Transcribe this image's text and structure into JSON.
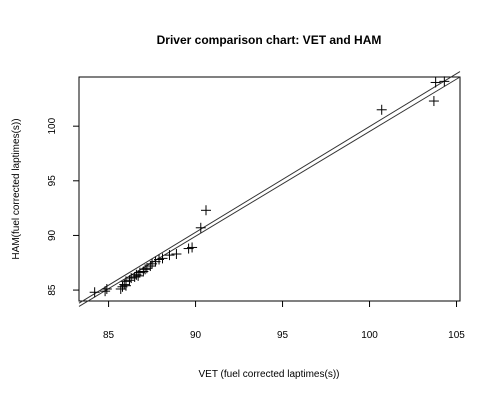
{
  "chart_data": {
    "type": "scatter",
    "title": "Driver comparison chart: VET and HAM",
    "xlabel": "VET (fuel corrected laptimes(s))",
    "ylabel": "HAM(fuel corrected laptimes(s))",
    "xlim": [
      83.3,
      105.2
    ],
    "ylim": [
      84.0,
      104.5
    ],
    "x_ticks": [
      85,
      90,
      95,
      100,
      105
    ],
    "y_ticks": [
      85,
      90,
      95,
      100
    ],
    "grid": false,
    "marker": "plus",
    "points": [
      {
        "x": 84.2,
        "y": 84.8
      },
      {
        "x": 84.8,
        "y": 84.9
      },
      {
        "x": 84.9,
        "y": 85.1
      },
      {
        "x": 85.7,
        "y": 85.1
      },
      {
        "x": 85.8,
        "y": 85.3
      },
      {
        "x": 85.9,
        "y": 85.5
      },
      {
        "x": 86.0,
        "y": 85.4
      },
      {
        "x": 86.0,
        "y": 85.8
      },
      {
        "x": 86.2,
        "y": 85.9
      },
      {
        "x": 86.3,
        "y": 86.1
      },
      {
        "x": 86.5,
        "y": 86.2
      },
      {
        "x": 86.6,
        "y": 86.4
      },
      {
        "x": 86.7,
        "y": 86.3
      },
      {
        "x": 86.8,
        "y": 86.6
      },
      {
        "x": 87.0,
        "y": 86.7
      },
      {
        "x": 87.1,
        "y": 86.9
      },
      {
        "x": 87.2,
        "y": 87.0
      },
      {
        "x": 87.4,
        "y": 87.2
      },
      {
        "x": 87.5,
        "y": 87.4
      },
      {
        "x": 87.7,
        "y": 87.6
      },
      {
        "x": 87.9,
        "y": 87.8
      },
      {
        "x": 88.1,
        "y": 87.9
      },
      {
        "x": 88.5,
        "y": 88.2
      },
      {
        "x": 88.9,
        "y": 88.3
      },
      {
        "x": 89.6,
        "y": 88.8
      },
      {
        "x": 89.8,
        "y": 88.9
      },
      {
        "x": 90.3,
        "y": 90.7
      },
      {
        "x": 90.6,
        "y": 92.3
      },
      {
        "x": 100.7,
        "y": 101.5
      },
      {
        "x": 103.7,
        "y": 102.3
      },
      {
        "x": 103.8,
        "y": 104.0
      },
      {
        "x": 104.3,
        "y": 104.1
      }
    ],
    "lines": [
      {
        "x0": 83.3,
        "y0": 83.8,
        "x1": 105.2,
        "y1": 105.0
      },
      {
        "x0": 83.3,
        "y0": 83.5,
        "x1": 105.2,
        "y1": 104.5
      }
    ]
  }
}
